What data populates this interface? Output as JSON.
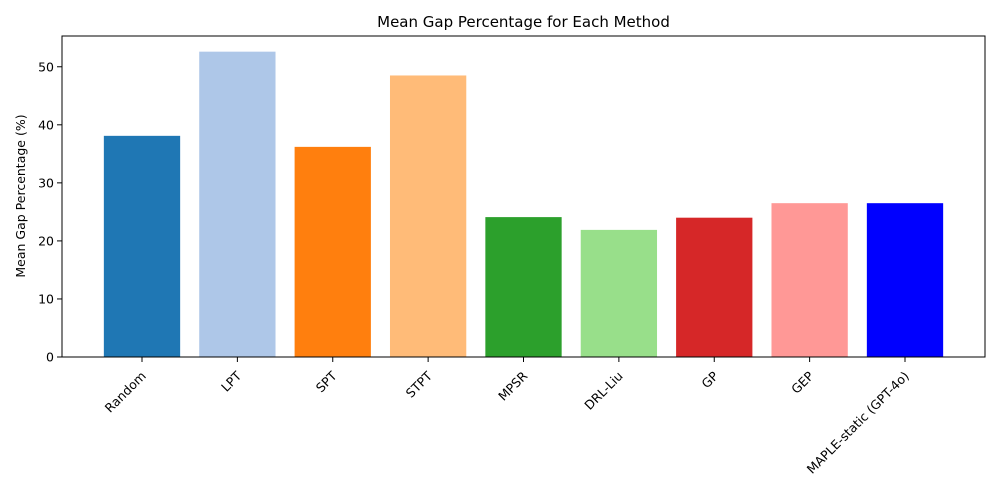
{
  "chart_data": {
    "type": "bar",
    "title": "Mean Gap Percentage for Each Method",
    "xlabel": "",
    "ylabel": "Mean Gap Percentage (%)",
    "ylim": [
      0,
      55.3
    ],
    "yticks": [
      0,
      10,
      20,
      30,
      40,
      50
    ],
    "grid": false,
    "categories": [
      "Random",
      "LPT",
      "SPT",
      "STPT",
      "MPSR",
      "DRL-Liu",
      "GP",
      "GEP",
      "MAPLE-static (GPT-4o)"
    ],
    "values": [
      38.1,
      52.6,
      36.2,
      48.5,
      24.1,
      21.9,
      24.0,
      26.5,
      26.5
    ],
    "colors": [
      "#1f77b4",
      "#aec7e8",
      "#ff7f0e",
      "#ffbb78",
      "#2ca02c",
      "#98df8a",
      "#d62728",
      "#ff9896",
      "#0000ff"
    ]
  }
}
